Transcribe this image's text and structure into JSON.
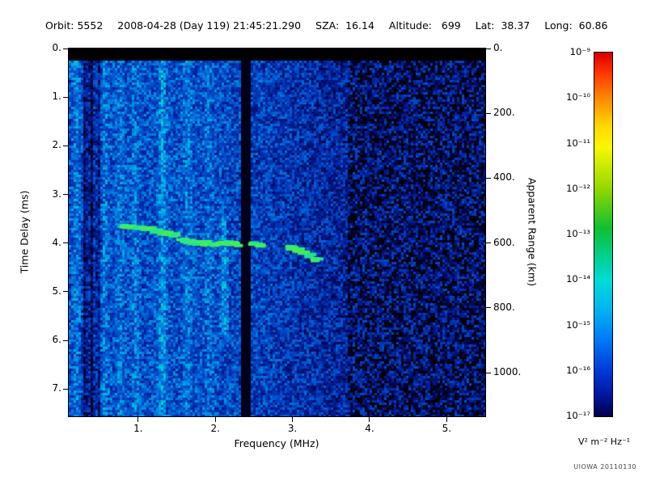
{
  "header": {
    "orbit": "Orbit: 5552",
    "datetime": "2008-04-28 (Day 119) 21:45:21.290",
    "sza": "SZA:  16.14",
    "altitude": "Altitude:   699",
    "lat": "Lat:  38.37",
    "long": "Long:  60.86"
  },
  "footer": {
    "credit": "UIOWA 20110130"
  },
  "chart_data": {
    "type": "heatmap",
    "title": "",
    "xlabel": "Frequency (MHz)",
    "ylabel": "Time Delay (ms)",
    "y2label": "Apparent Range (km)",
    "xlim": [
      0.1,
      5.5
    ],
    "ymax_ms": 7.56,
    "y2max_km": 1134,
    "xticks": [
      1,
      2,
      3,
      4,
      5
    ],
    "xtick_labels": [
      "1.",
      "2.",
      "3.",
      "4.",
      "5."
    ],
    "yticks": [
      0,
      1,
      2,
      3,
      4,
      5,
      6,
      7
    ],
    "ytick_labels": [
      "0.",
      "1.",
      "2.",
      "3.",
      "4.",
      "5.",
      "6.",
      "7."
    ],
    "y2ticks": [
      0,
      200,
      400,
      600,
      800,
      1000
    ],
    "y2tick_labels": [
      "0.",
      "200.",
      "400.",
      "600.",
      "800.",
      "1000."
    ],
    "colorbar": {
      "units": "V² m⁻² Hz⁻¹",
      "tick_labels": [
        "10⁻⁹",
        "10⁻¹⁰",
        "10⁻¹¹",
        "10⁻¹²",
        "10⁻¹³",
        "10⁻¹⁴",
        "10⁻¹⁵",
        "10⁻¹⁶",
        "10⁻¹⁷"
      ],
      "tick_values": [
        1e-09,
        1e-10,
        1e-11,
        1e-12,
        1e-13,
        1e-14,
        1e-15,
        1e-16,
        1e-17
      ],
      "gradient_stops": [
        [
          0,
          "#d80000"
        ],
        [
          0.05,
          "#ff3000"
        ],
        [
          0.125,
          "#ff8800"
        ],
        [
          0.2,
          "#ffd800"
        ],
        [
          0.26,
          "#f8f800"
        ],
        [
          0.375,
          "#90d800"
        ],
        [
          0.48,
          "#10c030"
        ],
        [
          0.56,
          "#00d090"
        ],
        [
          0.625,
          "#00dcd8"
        ],
        [
          0.7,
          "#00b8f0"
        ],
        [
          0.78,
          "#0080f8"
        ],
        [
          0.875,
          "#0038d8"
        ],
        [
          0.94,
          "#0018a0"
        ],
        [
          1,
          "#000048"
        ]
      ]
    },
    "colormap_stops": [
      [
        0,
        "#000000"
      ],
      [
        0.12,
        "#000038"
      ],
      [
        0.3,
        "#0020a0"
      ],
      [
        0.5,
        "#0060d8"
      ],
      [
        0.65,
        "#00a8e8"
      ],
      [
        0.78,
        "#00d8c8"
      ],
      [
        0.9,
        "#30e880"
      ],
      [
        1,
        "#48f048"
      ]
    ],
    "features": {
      "top_black_band_ms": [
        0,
        0.22
      ],
      "blackout_band_mhz": [
        2.32,
        2.44
      ],
      "noise_floor_boundary_mhz": 3.7,
      "bright_columns": [
        [
          0.18,
          0.1
        ],
        [
          0.55,
          0.1
        ],
        [
          0.75,
          0.08
        ],
        [
          0.95,
          0.1
        ],
        [
          1.3,
          0.17
        ],
        [
          1.62,
          0.1
        ],
        [
          1.9,
          0.08
        ]
      ],
      "dark_columns": [
        [
          0.3,
          0.25
        ],
        [
          0.38,
          0.3
        ],
        [
          0.47,
          0.2
        ]
      ],
      "vertical_streak": {
        "f": 2.1,
        "t_range": [
          3.4,
          5.9
        ]
      },
      "echo_trace": [
        [
          0.85,
          3.65
        ],
        [
          0.92,
          3.66
        ],
        [
          1.0,
          3.68
        ],
        [
          1.08,
          3.7
        ],
        [
          1.16,
          3.72
        ],
        [
          1.24,
          3.75
        ],
        [
          1.32,
          3.78
        ],
        [
          1.4,
          3.8
        ],
        [
          1.48,
          3.83
        ],
        [
          1.58,
          3.95
        ],
        [
          1.68,
          3.98
        ],
        [
          1.78,
          4.0
        ],
        [
          1.88,
          4.0
        ],
        [
          1.98,
          4.02
        ],
        [
          2.08,
          4.0
        ],
        [
          2.18,
          4.0
        ],
        [
          2.28,
          4.02
        ],
        [
          2.5,
          4.03
        ],
        [
          2.58,
          4.05
        ],
        [
          3.0,
          4.1
        ],
        [
          3.08,
          4.14
        ],
        [
          3.16,
          4.18
        ],
        [
          3.24,
          4.26
        ],
        [
          3.32,
          4.33
        ]
      ]
    }
  }
}
